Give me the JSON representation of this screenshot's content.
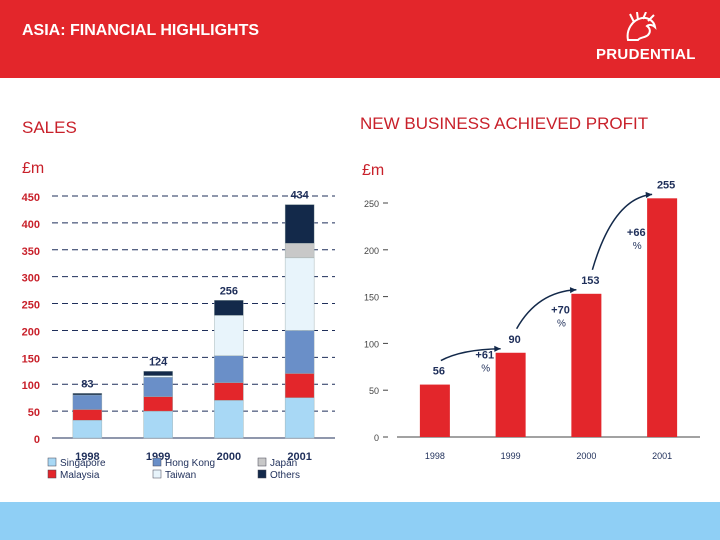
{
  "header": {
    "title": "ASIA: FINANCIAL HIGHLIGHTS",
    "logo_text": "PRUDENTIAL",
    "logo_icon": "prudence-head-icon"
  },
  "colors": {
    "header_bg": "#e3262b",
    "footer_bg": "#8fcff5",
    "singapore": "#a8d8f5",
    "malaysia": "#e3262b",
    "hong_kong": "#6a8fc8",
    "taiwan": "#e8f4fb",
    "japan": "#c8c8c8",
    "others": "#13294a",
    "profit_bar": "#e3262b"
  },
  "chart_data": [
    {
      "type": "bar",
      "stacked": true,
      "title": "SALES",
      "ylabel": "£m",
      "categories": [
        "1998",
        "1999",
        "2000",
        "2001"
      ],
      "totals": [
        "83",
        "124",
        "256",
        "434"
      ],
      "ylim": [
        0,
        450
      ],
      "yticks": [
        "0",
        "50",
        "100",
        "150",
        "200",
        "250",
        "300",
        "350",
        "400",
        "450"
      ],
      "grid": "dashed horizontal",
      "legend_position": "bottom",
      "series": [
        {
          "name": "Singapore",
          "color": "#a8d8f5",
          "values": [
            33,
            50,
            70,
            75
          ]
        },
        {
          "name": "Malaysia",
          "color": "#e3262b",
          "values": [
            20,
            27,
            33,
            45
          ]
        },
        {
          "name": "Hong Kong",
          "color": "#6a8fc8",
          "values": [
            27,
            36,
            50,
            80
          ]
        },
        {
          "name": "Taiwan",
          "color": "#e8f4fb",
          "values": [
            0,
            3,
            75,
            135
          ]
        },
        {
          "name": "Japan",
          "color": "#c8c8c8",
          "values": [
            0,
            0,
            0,
            27
          ]
        },
        {
          "name": "Others",
          "color": "#13294a",
          "values": [
            3,
            8,
            28,
            72
          ]
        }
      ]
    },
    {
      "type": "bar",
      "title": "NEW BUSINESS ACHIEVED PROFIT",
      "ylabel": "£m",
      "categories": [
        "1998",
        "1999",
        "2000",
        "2001"
      ],
      "values": [
        56,
        90,
        153,
        255
      ],
      "value_labels": [
        "56",
        "90",
        "153",
        "255"
      ],
      "ylim": [
        0,
        270
      ],
      "yticks": [
        "0",
        "50",
        "100",
        "150",
        "200",
        "250"
      ],
      "growth_annotations": [
        {
          "from": "1998",
          "to": "1999",
          "line1": "+61",
          "line2": "%"
        },
        {
          "from": "1999",
          "to": "2000",
          "line1": "+70",
          "line2": "%"
        },
        {
          "from": "2000",
          "to": "2001",
          "line1": "+66",
          "line2": "%"
        }
      ]
    }
  ]
}
